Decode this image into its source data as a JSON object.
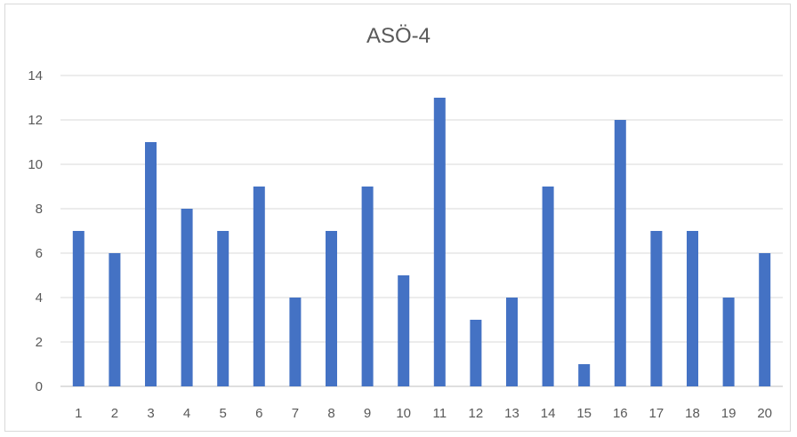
{
  "chart_data": {
    "type": "bar",
    "title": "ASÖ-4",
    "xlabel": "",
    "ylabel": "",
    "categories": [
      "1",
      "2",
      "3",
      "4",
      "5",
      "6",
      "7",
      "8",
      "9",
      "10",
      "11",
      "12",
      "13",
      "14",
      "15",
      "16",
      "17",
      "18",
      "19",
      "20"
    ],
    "values": [
      7,
      6,
      11,
      8,
      7,
      9,
      4,
      7,
      9,
      5,
      13,
      3,
      4,
      9,
      1,
      12,
      7,
      7,
      4,
      6
    ],
    "ylim": [
      0,
      14
    ],
    "yticks": [
      "0",
      "2",
      "4",
      "6",
      "8",
      "10",
      "12",
      "14"
    ],
    "grid": true,
    "legend": "none",
    "bar_color": "#4472c4"
  }
}
